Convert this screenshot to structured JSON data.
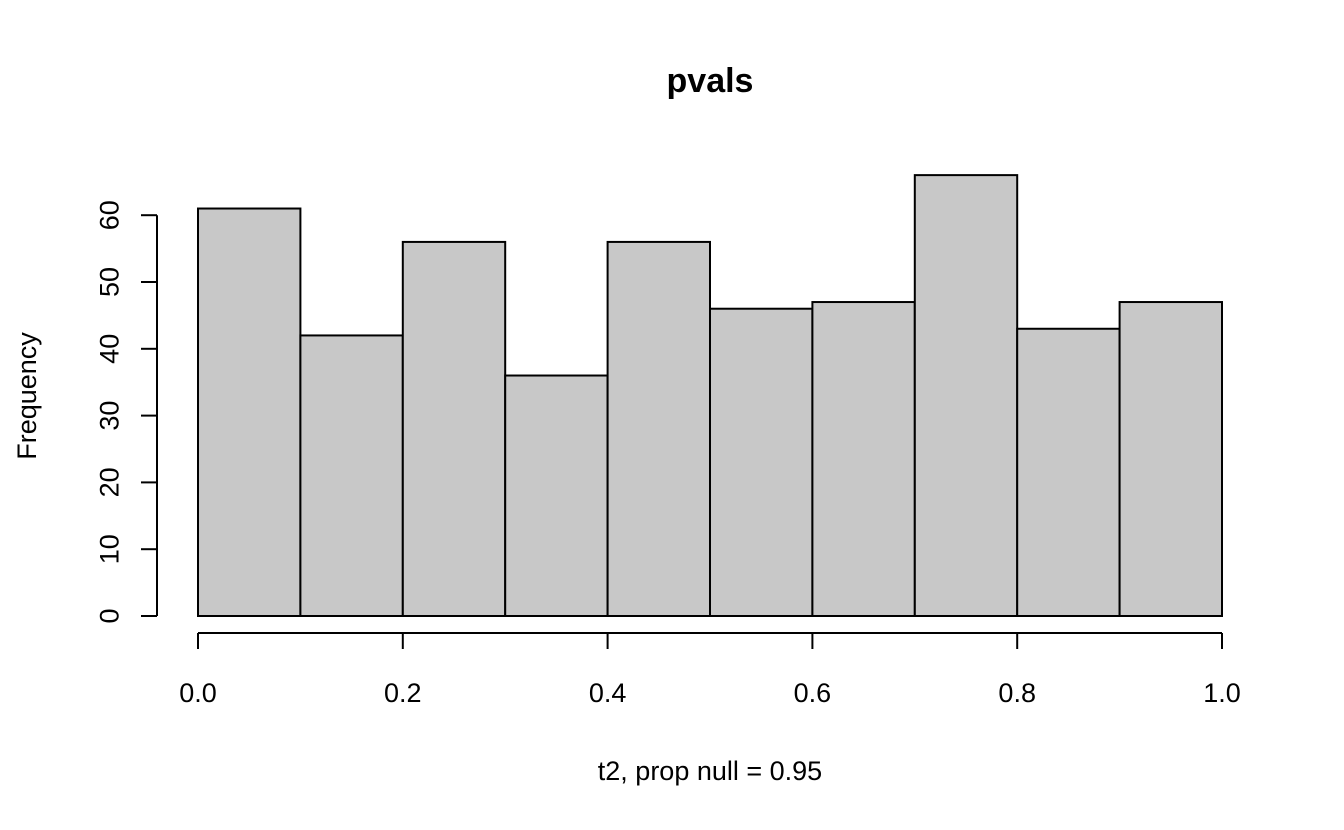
{
  "chart_data": {
    "type": "bar",
    "title": "pvals",
    "xlabel": "t2, prop null = 0.95",
    "ylabel": "Frequency",
    "bin_edges": [
      0.0,
      0.1,
      0.2,
      0.3,
      0.4,
      0.5,
      0.6,
      0.7,
      0.8,
      0.9,
      1.0
    ],
    "values": [
      61,
      42,
      56,
      36,
      56,
      46,
      47,
      66,
      43,
      47
    ],
    "xlim": [
      0.0,
      1.0
    ],
    "ylim": [
      0,
      60
    ],
    "x_ticks": [
      "0.0",
      "0.2",
      "0.4",
      "0.6",
      "0.8",
      "1.0"
    ],
    "y_ticks": [
      "0",
      "10",
      "20",
      "30",
      "40",
      "50",
      "60"
    ],
    "grid": false,
    "legend": "none",
    "bar_color": "#c8c8c8"
  }
}
